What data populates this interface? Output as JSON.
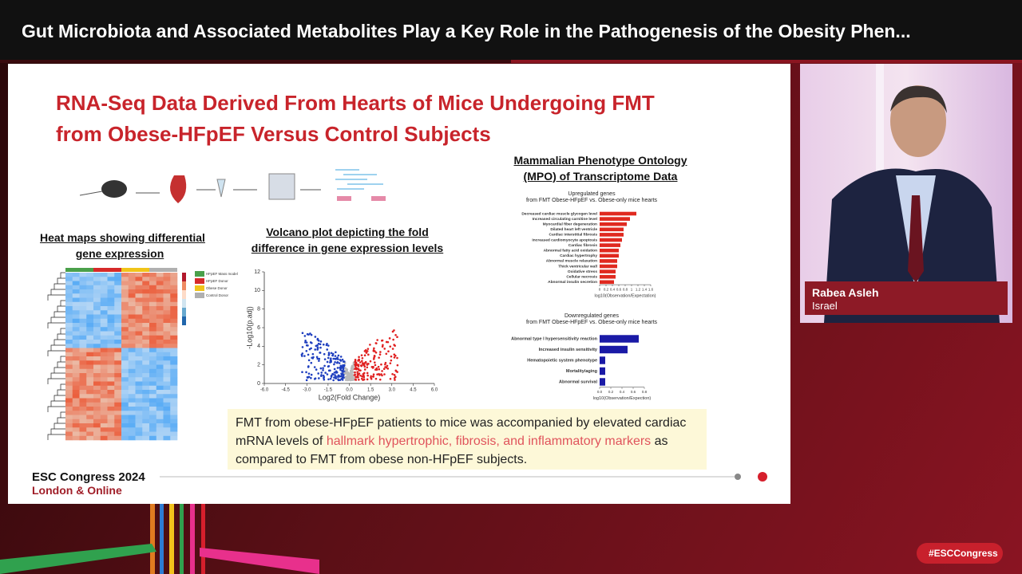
{
  "header": {
    "title": "Gut Microbiota and Associated Metabolites Play a Key Role in the Pathogenesis of the Obesity Phen..."
  },
  "slide": {
    "title_lines": [
      "RNA-Seq Data Derived From Hearts of Mice Undergoing FMT",
      "from Obese-HFpEF Versus Control Subjects"
    ],
    "heatmap_title": [
      "Heat maps showing differential",
      "gene expression"
    ],
    "heatmap_legend": [
      "HFpEF Mass model",
      "HFpEF Donor",
      "Obese Donor",
      "Control Donor"
    ],
    "volcano_title": [
      "Volcano plot depicting the fold",
      "difference in gene expression levels"
    ],
    "mpo_title": [
      "Mammalian Phenotype Ontology",
      "(MPO) of Transcriptome Data"
    ],
    "caption": {
      "before": "FMT from obese-HFpEF patients to mice was accompanied by elevated cardiac mRNA levels of ",
      "highlight": "hallmark hypertrophic, fibrosis, and inflammatory markers",
      "after": " as compared to FMT from obese non-HFpEF subjects."
    },
    "footer": {
      "event": "ESC Congress 2024",
      "location": "London & Online"
    }
  },
  "speaker": {
    "name": "Rabea Asleh",
    "country": "Israel"
  },
  "hashtag": "#ESCCongress",
  "chart_data": [
    {
      "type": "scatter",
      "x_label": "Log2(Fold Change)",
      "y_label": "-Log10(p.adj)",
      "xlim": [
        -6,
        6
      ],
      "xticks": [
        {
          "value": -6,
          "label": "-6.0"
        },
        {
          "value": -4.5,
          "label": "-4.5"
        },
        {
          "value": -3,
          "label": "-3.0"
        },
        {
          "value": -1.5,
          "label": "-1.5"
        },
        {
          "value": 0,
          "label": "0.0"
        },
        {
          "value": 1.5,
          "label": "1.5"
        },
        {
          "value": 3,
          "label": "3.0"
        },
        {
          "value": 4.5,
          "label": "4.5"
        },
        {
          "value": 6,
          "label": "6.0"
        }
      ],
      "ylim": [
        0,
        12
      ],
      "yticks": [
        0,
        2,
        4,
        6,
        8,
        10,
        12
      ]
    },
    {
      "type": "bar",
      "orientation": "horizontal",
      "title": [
        "Upregulated genes",
        "from FMT Obese-HFpEF vs. Obese-only mice hearts"
      ],
      "x_label": "log10(Observation/Expectation)",
      "color": "#e0291f",
      "categories": [
        "Decreased cardiac muscle glycogen level",
        "Increased circulating carnitine level",
        "Myocardial fiber degeneration",
        "Dilated heart left ventricle",
        "Cardiac interstitial fibrosis",
        "Increased cardiomyocyte apoptosis",
        "Cardiac fibrosis",
        "Abnormal fatty acid oxidation",
        "Cardiac hypertrophy",
        "Abnormal muscle relaxation",
        "Thick ventricular wall",
        "Oxidative stress",
        "Cellular necrosis",
        "Abnormal insulin secretion"
      ],
      "values": [
        1.15,
        0.95,
        0.85,
        0.75,
        0.75,
        0.7,
        0.65,
        0.6,
        0.6,
        0.55,
        0.55,
        0.5,
        0.5,
        0.45
      ],
      "xlim": [
        0,
        1.6
      ],
      "xticks": [
        0,
        0.2,
        0.4,
        0.6,
        0.8,
        1,
        1.2,
        1.4,
        1.6
      ]
    },
    {
      "type": "bar",
      "orientation": "horizontal",
      "title": [
        "Downregulated genes",
        "from FMT Obese-HFpEF vs. Obese-only mice hearts"
      ],
      "x_label": "log10(Observation/Expection)",
      "color": "#1a1aa6",
      "categories": [
        "Abnormal type I hypersensitivity reaction",
        "Increased insulin sensitivity",
        "Hematopoietic system phenotype",
        "Mortality/aging",
        "Abnormal survival"
      ],
      "values": [
        0.7,
        0.5,
        0.1,
        0.1,
        0.1
      ],
      "xlim": [
        0,
        0.8
      ],
      "xticks": [
        {
          "value": 0,
          "label": "0.0"
        },
        0.2,
        0.4,
        0.6,
        0.8
      ]
    }
  ]
}
